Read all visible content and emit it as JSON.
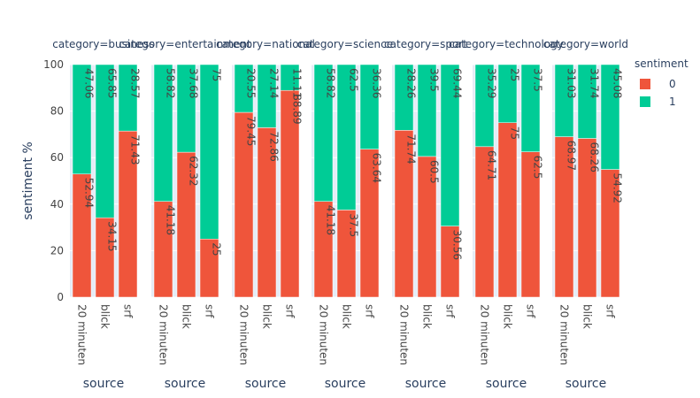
{
  "chart_data": {
    "type": "bar",
    "barmode": "stack",
    "ylabel": "sentiment %",
    "xlabel": "source",
    "ylim": [
      0,
      100
    ],
    "yticks": [
      0,
      20,
      40,
      60,
      80,
      100
    ],
    "grid": true,
    "sources": [
      "20 minuten",
      "blick",
      "srf"
    ],
    "legend": {
      "title": "sentiment",
      "placement": "top-right",
      "items": [
        {
          "label": "0",
          "color": "#EF553B"
        },
        {
          "label": "1",
          "color": "#00CC96"
        }
      ]
    },
    "facets": [
      {
        "title": "category=business",
        "series": [
          {
            "name": "0",
            "values": [
              52.94,
              34.15,
              71.43
            ],
            "labels": [
              "52.94",
              "34.15",
              "71.43"
            ]
          },
          {
            "name": "1",
            "values": [
              47.06,
              65.85,
              28.57
            ],
            "labels": [
              "47.06",
              "65.85",
              "28.57"
            ]
          }
        ]
      },
      {
        "title": "category=entertainment",
        "series": [
          {
            "name": "0",
            "values": [
              41.18,
              62.32,
              25
            ],
            "labels": [
              "41.18",
              "62.32",
              "25"
            ]
          },
          {
            "name": "1",
            "values": [
              58.82,
              37.68,
              75
            ],
            "labels": [
              "58.82",
              "37.68",
              "75"
            ]
          }
        ]
      },
      {
        "title": "category=national",
        "series": [
          {
            "name": "0",
            "values": [
              79.45,
              72.86,
              88.89
            ],
            "labels": [
              "79.45",
              "72.86",
              "88.89"
            ]
          },
          {
            "name": "1",
            "values": [
              20.55,
              27.14,
              11.11
            ],
            "labels": [
              "20.55",
              "27.14",
              "11.11"
            ]
          }
        ]
      },
      {
        "title": "category=science",
        "series": [
          {
            "name": "0",
            "values": [
              41.18,
              37.5,
              63.64
            ],
            "labels": [
              "41.18",
              "37.5",
              "63.64"
            ]
          },
          {
            "name": "1",
            "values": [
              58.82,
              62.5,
              36.36
            ],
            "labels": [
              "58.82",
              "62.5",
              "36.36"
            ]
          }
        ]
      },
      {
        "title": "category=sport",
        "series": [
          {
            "name": "0",
            "values": [
              71.74,
              60.5,
              30.56
            ],
            "labels": [
              "71.74",
              "60.5",
              "30.56"
            ]
          },
          {
            "name": "1",
            "values": [
              28.26,
              39.5,
              69.44
            ],
            "labels": [
              "28.26",
              "39.5",
              "69.44"
            ]
          }
        ]
      },
      {
        "title": "category=technology",
        "series": [
          {
            "name": "0",
            "values": [
              64.71,
              75,
              62.5
            ],
            "labels": [
              "64.71",
              "75",
              "62.5"
            ]
          },
          {
            "name": "1",
            "values": [
              35.29,
              25,
              37.5
            ],
            "labels": [
              "35.29",
              "25",
              "37.5"
            ]
          }
        ]
      },
      {
        "title": "category=world",
        "series": [
          {
            "name": "0",
            "values": [
              68.97,
              68.26,
              54.92
            ],
            "labels": [
              "68.97",
              "68.26",
              "54.92"
            ]
          },
          {
            "name": "1",
            "values": [
              31.03,
              31.74,
              45.08
            ],
            "labels": [
              "31.03",
              "31.74",
              "45.08"
            ]
          }
        ]
      }
    ]
  },
  "colors": {
    "sentiment_0": "#EF553B",
    "sentiment_1": "#00CC96",
    "plot_bg": "#E5ECF6",
    "grid": "#ffffff"
  }
}
